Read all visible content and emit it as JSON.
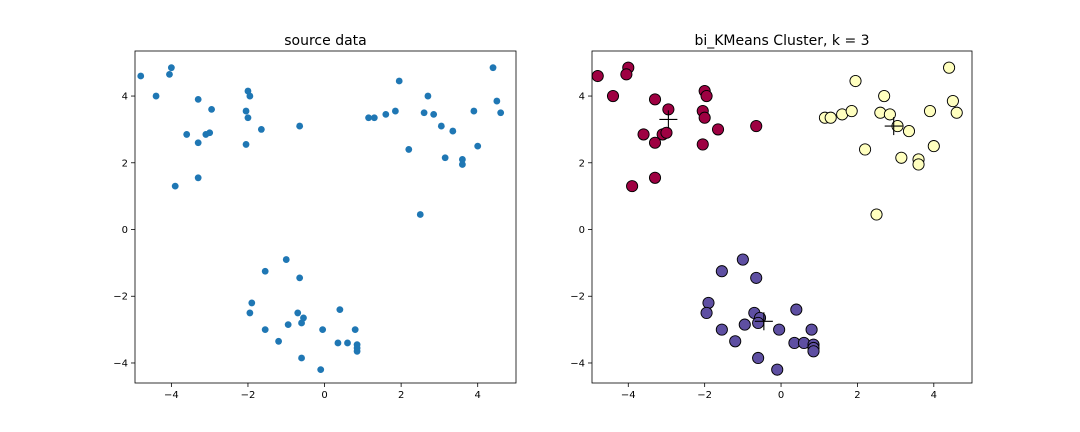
{
  "figure": {
    "background": "#ffffff"
  },
  "chart_data": [
    {
      "type": "scatter",
      "title": "source data",
      "xlabel": "",
      "ylabel": "",
      "xlim": [
        -4.95,
        5.0
      ],
      "ylim": [
        -4.6,
        5.35
      ],
      "xticks": [
        -4,
        -2,
        0,
        2,
        4
      ],
      "yticks": [
        -4,
        -2,
        0,
        2,
        4
      ],
      "xtick_labels": [
        "−4",
        "−2",
        "0",
        "2",
        "4"
      ],
      "ytick_labels": [
        "−4",
        "−2",
        "0",
        "2",
        "4"
      ],
      "grid": false,
      "marker_color": "#1f77b4",
      "points": [
        [
          -4.8,
          4.6
        ],
        [
          -4.4,
          4.0
        ],
        [
          -4.0,
          4.85
        ],
        [
          -4.05,
          4.65
        ],
        [
          -3.3,
          3.9
        ],
        [
          -2.95,
          3.6
        ],
        [
          -3.6,
          2.85
        ],
        [
          -3.1,
          2.85
        ],
        [
          -3.0,
          2.9
        ],
        [
          -3.3,
          2.6
        ],
        [
          -3.3,
          1.55
        ],
        [
          -3.9,
          1.3
        ],
        [
          -2.0,
          4.15
        ],
        [
          -1.95,
          4.0
        ],
        [
          -2.05,
          3.55
        ],
        [
          -2.0,
          3.35
        ],
        [
          -1.65,
          3.0
        ],
        [
          -2.05,
          2.55
        ],
        [
          -0.65,
          3.1
        ],
        [
          1.15,
          3.35
        ],
        [
          1.3,
          3.35
        ],
        [
          1.6,
          3.45
        ],
        [
          1.85,
          3.55
        ],
        [
          1.95,
          4.45
        ],
        [
          2.7,
          4.0
        ],
        [
          2.6,
          3.5
        ],
        [
          2.85,
          3.45
        ],
        [
          3.05,
          3.1
        ],
        [
          3.35,
          2.95
        ],
        [
          2.2,
          2.4
        ],
        [
          3.15,
          2.15
        ],
        [
          3.6,
          2.1
        ],
        [
          3.6,
          1.95
        ],
        [
          4.0,
          2.5
        ],
        [
          3.9,
          3.55
        ],
        [
          4.4,
          4.85
        ],
        [
          4.5,
          3.85
        ],
        [
          4.6,
          3.5
        ],
        [
          2.5,
          0.45
        ],
        [
          -1.55,
          -1.25
        ],
        [
          -1.0,
          -0.9
        ],
        [
          -0.65,
          -1.45
        ],
        [
          -1.9,
          -2.2
        ],
        [
          -1.95,
          -2.5
        ],
        [
          -1.55,
          -3.0
        ],
        [
          -1.2,
          -3.35
        ],
        [
          -0.95,
          -2.85
        ],
        [
          -0.7,
          -2.5
        ],
        [
          -0.55,
          -2.65
        ],
        [
          -0.6,
          -2.8
        ],
        [
          -0.6,
          -3.85
        ],
        [
          -0.05,
          -3.0
        ],
        [
          -0.1,
          -4.2
        ],
        [
          0.4,
          -2.4
        ],
        [
          0.35,
          -3.4
        ],
        [
          0.6,
          -3.4
        ],
        [
          0.8,
          -3.0
        ],
        [
          0.85,
          -3.45
        ],
        [
          0.85,
          -3.55
        ],
        [
          0.85,
          -3.65
        ]
      ]
    },
    {
      "type": "scatter",
      "title": "bi_KMeans Cluster, k = 3",
      "xlabel": "",
      "ylabel": "",
      "xlim": [
        -4.95,
        5.0
      ],
      "ylim": [
        -4.6,
        5.35
      ],
      "xticks": [
        -4,
        -2,
        0,
        2,
        4
      ],
      "yticks": [
        -4,
        -2,
        0,
        2,
        4
      ],
      "xtick_labels": [
        "−4",
        "−2",
        "0",
        "2",
        "4"
      ],
      "ytick_labels": [
        "−4",
        "−2",
        "0",
        "2",
        "4"
      ],
      "grid": false,
      "series": [
        {
          "color": "#9e0142",
          "centroid": [
            -2.95,
            3.3
          ],
          "points": [
            [
              -4.8,
              4.6
            ],
            [
              -4.4,
              4.0
            ],
            [
              -4.0,
              4.85
            ],
            [
              -4.05,
              4.65
            ],
            [
              -3.3,
              3.9
            ],
            [
              -2.95,
              3.6
            ],
            [
              -3.6,
              2.85
            ],
            [
              -3.1,
              2.85
            ],
            [
              -3.0,
              2.9
            ],
            [
              -3.3,
              2.6
            ],
            [
              -3.3,
              1.55
            ],
            [
              -3.9,
              1.3
            ],
            [
              -2.0,
              4.15
            ],
            [
              -1.95,
              4.0
            ],
            [
              -2.05,
              3.55
            ],
            [
              -2.0,
              3.35
            ],
            [
              -1.65,
              3.0
            ],
            [
              -2.05,
              2.55
            ],
            [
              -0.65,
              3.1
            ]
          ]
        },
        {
          "color": "#ffffbf",
          "centroid": [
            2.95,
            3.1
          ],
          "points": [
            [
              1.15,
              3.35
            ],
            [
              1.3,
              3.35
            ],
            [
              1.6,
              3.45
            ],
            [
              1.85,
              3.55
            ],
            [
              1.95,
              4.45
            ],
            [
              2.7,
              4.0
            ],
            [
              2.6,
              3.5
            ],
            [
              2.85,
              3.45
            ],
            [
              3.05,
              3.1
            ],
            [
              3.35,
              2.95
            ],
            [
              2.2,
              2.4
            ],
            [
              3.15,
              2.15
            ],
            [
              3.6,
              2.1
            ],
            [
              3.6,
              1.95
            ],
            [
              4.0,
              2.5
            ],
            [
              3.9,
              3.55
            ],
            [
              4.4,
              4.85
            ],
            [
              4.5,
              3.85
            ],
            [
              4.6,
              3.5
            ],
            [
              2.5,
              0.45
            ]
          ]
        },
        {
          "color": "#5e4fa2",
          "centroid": [
            -0.45,
            -2.75
          ],
          "points": [
            [
              -1.55,
              -1.25
            ],
            [
              -1.0,
              -0.9
            ],
            [
              -0.65,
              -1.45
            ],
            [
              -1.9,
              -2.2
            ],
            [
              -1.95,
              -2.5
            ],
            [
              -1.55,
              -3.0
            ],
            [
              -1.2,
              -3.35
            ],
            [
              -0.95,
              -2.85
            ],
            [
              -0.7,
              -2.5
            ],
            [
              -0.55,
              -2.65
            ],
            [
              -0.6,
              -2.8
            ],
            [
              -0.6,
              -3.85
            ],
            [
              -0.05,
              -3.0
            ],
            [
              -0.1,
              -4.2
            ],
            [
              0.4,
              -2.4
            ],
            [
              0.35,
              -3.4
            ],
            [
              0.6,
              -3.4
            ],
            [
              0.8,
              -3.0
            ],
            [
              0.85,
              -3.45
            ],
            [
              0.85,
              -3.55
            ],
            [
              0.85,
              -3.65
            ]
          ]
        }
      ]
    }
  ]
}
